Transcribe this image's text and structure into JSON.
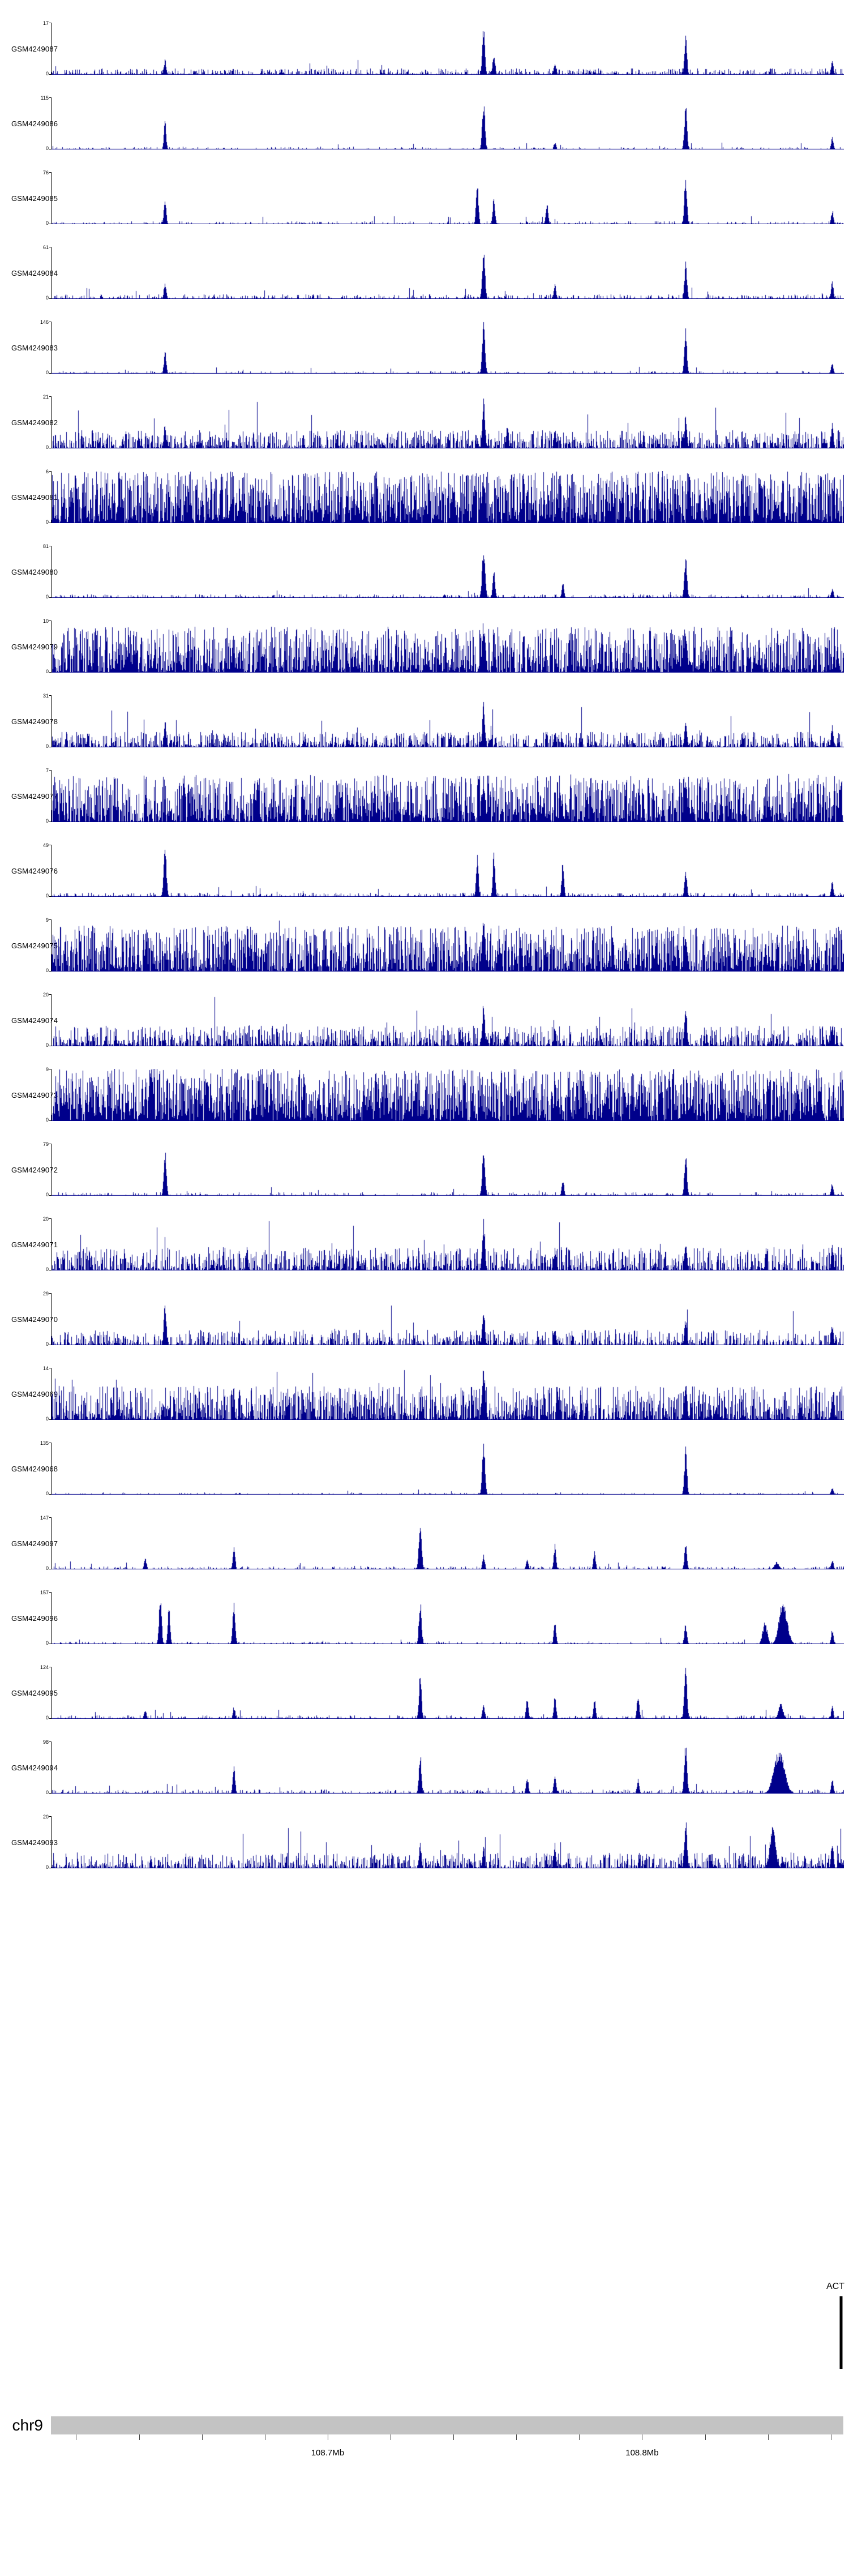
{
  "chart_data": {
    "type": "area",
    "subtype": "genome-coverage-tracks",
    "colors": {
      "signal": "#00008b",
      "chromosome_bar": "#c3c3c3",
      "gene": "#000000",
      "axis": "#000000"
    },
    "x_axis": {
      "chromosome_label": "chr9",
      "start_mb": 108.612,
      "end_mb": 108.864,
      "tick_interval_mb": 0.02,
      "labels": [
        {
          "text": "108.7Mb",
          "mb": 108.7
        },
        {
          "text": "108.8Mb",
          "mb": 108.8
        }
      ]
    },
    "gene": {
      "label": "ACT",
      "frac": 0.997
    },
    "tracks": [
      {
        "name": "GSM4249087",
        "ymax": "17",
        "ymin": "0",
        "seed": 11,
        "noise": {
          "d": 0.75,
          "a": 0.12,
          "p": 2.6
        },
        "peaks": [
          [
            0.143,
            0.32,
            2
          ],
          [
            0.545,
            1,
            2.2
          ],
          [
            0.558,
            0.45,
            2
          ],
          [
            0.635,
            0.22,
            2
          ],
          [
            0.8,
            0.78,
            2.2
          ],
          [
            0.985,
            0.3,
            2
          ]
        ]
      },
      {
        "name": "GSM4249086",
        "ymax": "115",
        "ymin": "0",
        "seed": 12,
        "noise": {
          "d": 0.45,
          "a": 0.05,
          "p": 3
        },
        "peaks": [
          [
            0.143,
            0.55,
            2
          ],
          [
            0.545,
            1,
            2.4
          ],
          [
            0.635,
            0.15,
            2
          ],
          [
            0.8,
            0.92,
            2.2
          ],
          [
            0.985,
            0.25,
            2
          ]
        ]
      },
      {
        "name": "GSM4249085",
        "ymax": "76",
        "ymin": "0",
        "seed": 13,
        "noise": {
          "d": 0.5,
          "a": 0.06,
          "p": 3
        },
        "peaks": [
          [
            0.143,
            0.5,
            2
          ],
          [
            0.537,
            0.88,
            2
          ],
          [
            0.558,
            0.55,
            2
          ],
          [
            0.625,
            0.42,
            2
          ],
          [
            0.8,
            1,
            2.2
          ],
          [
            0.985,
            0.28,
            2
          ]
        ]
      },
      {
        "name": "GSM4249084",
        "ymax": "61",
        "ymin": "0",
        "seed": 14,
        "noise": {
          "d": 0.6,
          "a": 0.09,
          "p": 2.8
        },
        "peaks": [
          [
            0.143,
            0.35,
            2
          ],
          [
            0.545,
            1,
            2.4
          ],
          [
            0.635,
            0.3,
            2
          ],
          [
            0.8,
            0.72,
            2.2
          ],
          [
            0.985,
            0.35,
            2
          ]
        ]
      },
      {
        "name": "GSM4249083",
        "ymax": "146",
        "ymin": "0",
        "seed": 15,
        "noise": {
          "d": 0.4,
          "a": 0.05,
          "p": 3
        },
        "peaks": [
          [
            0.143,
            0.45,
            2
          ],
          [
            0.545,
            1,
            2.4
          ],
          [
            0.8,
            0.88,
            2.2
          ],
          [
            0.985,
            0.22,
            2
          ]
        ]
      },
      {
        "name": "GSM4249082",
        "ymax": "21",
        "ymin": "0",
        "seed": 16,
        "noise": {
          "d": 0.85,
          "a": 0.35,
          "p": 2
        },
        "peaks": [
          [
            0.143,
            0.5,
            2
          ],
          [
            0.545,
            1,
            2.4
          ],
          [
            0.575,
            0.5,
            2
          ],
          [
            0.635,
            0.42,
            2
          ],
          [
            0.8,
            0.68,
            2.2
          ],
          [
            0.985,
            0.5,
            2
          ]
        ]
      },
      {
        "name": "GSM4249081",
        "ymax": "6",
        "ymin": "0",
        "seed": 17,
        "noise": {
          "d": 0.97,
          "a": 1,
          "p": 1.15
        },
        "peaks": [
          [
            0.545,
            1,
            3
          ]
        ]
      },
      {
        "name": "GSM4249080",
        "ymax": "81",
        "ymin": "0",
        "seed": 18,
        "noise": {
          "d": 0.55,
          "a": 0.07,
          "p": 3
        },
        "peaks": [
          [
            0.545,
            1,
            2.6
          ],
          [
            0.558,
            0.6,
            2
          ],
          [
            0.645,
            0.3,
            2
          ],
          [
            0.8,
            0.85,
            2.2
          ],
          [
            0.985,
            0.2,
            2
          ]
        ]
      },
      {
        "name": "GSM4249079",
        "ymax": "10",
        "ymin": "0",
        "seed": 19,
        "noise": {
          "d": 0.95,
          "a": 0.88,
          "p": 1.5
        },
        "peaks": [
          [
            0.545,
            1,
            3
          ],
          [
            0.8,
            0.8,
            3
          ]
        ]
      },
      {
        "name": "GSM4249078",
        "ymax": "31",
        "ymin": "0",
        "seed": 20,
        "noise": {
          "d": 0.88,
          "a": 0.3,
          "p": 2.2
        },
        "peaks": [
          [
            0.143,
            0.55,
            2
          ],
          [
            0.545,
            0.9,
            2.2
          ],
          [
            0.635,
            0.35,
            2
          ],
          [
            0.8,
            0.55,
            2.2
          ],
          [
            0.985,
            0.45,
            2
          ]
        ]
      },
      {
        "name": "GSM4249077",
        "ymax": "7",
        "ymin": "0",
        "seed": 21,
        "noise": {
          "d": 0.95,
          "a": 0.9,
          "p": 1.4
        },
        "peaks": [
          [
            0.26,
            1,
            2.2
          ],
          [
            0.545,
            0.9,
            3
          ],
          [
            0.8,
            0.85,
            3
          ]
        ]
      },
      {
        "name": "GSM4249076",
        "ymax": "49",
        "ymin": "0",
        "seed": 22,
        "noise": {
          "d": 0.6,
          "a": 0.08,
          "p": 3
        },
        "peaks": [
          [
            0.143,
            1,
            2.4
          ],
          [
            0.537,
            0.85,
            2
          ],
          [
            0.558,
            0.9,
            2
          ],
          [
            0.645,
            0.72,
            2
          ],
          [
            0.8,
            0.5,
            2.2
          ],
          [
            0.985,
            0.3,
            2
          ]
        ]
      },
      {
        "name": "GSM4249075",
        "ymax": "9",
        "ymin": "0",
        "seed": 23,
        "noise": {
          "d": 0.95,
          "a": 0.88,
          "p": 1.5
        },
        "peaks": [
          [
            0.545,
            1,
            3
          ],
          [
            0.8,
            0.8,
            3
          ]
        ]
      },
      {
        "name": "GSM4249074",
        "ymax": "20",
        "ymin": "0",
        "seed": 24,
        "noise": {
          "d": 0.87,
          "a": 0.4,
          "p": 2.2
        },
        "peaks": [
          [
            0.545,
            0.9,
            2.2
          ],
          [
            0.635,
            0.4,
            2
          ],
          [
            0.8,
            0.85,
            2.2
          ],
          [
            0.985,
            0.5,
            2
          ]
        ]
      },
      {
        "name": "GSM4249073",
        "ymax": "9",
        "ymin": "0",
        "seed": 25,
        "noise": {
          "d": 0.97,
          "a": 1,
          "p": 1.1
        },
        "peaks": []
      },
      {
        "name": "GSM4249072",
        "ymax": "79",
        "ymin": "0",
        "seed": 26,
        "noise": {
          "d": 0.5,
          "a": 0.07,
          "p": 3
        },
        "peaks": [
          [
            0.143,
            0.9,
            2.2
          ],
          [
            0.545,
            1,
            2.4
          ],
          [
            0.645,
            0.35,
            2
          ],
          [
            0.8,
            0.9,
            2.2
          ],
          [
            0.985,
            0.25,
            2
          ]
        ]
      },
      {
        "name": "GSM4249071",
        "ymax": "20",
        "ymin": "0",
        "seed": 27,
        "noise": {
          "d": 0.86,
          "a": 0.45,
          "p": 2
        },
        "peaks": [
          [
            0.545,
            1,
            2.4
          ],
          [
            0.635,
            0.4,
            2
          ],
          [
            0.8,
            0.62,
            2.2
          ],
          [
            0.985,
            0.5,
            2
          ]
        ]
      },
      {
        "name": "GSM4249070",
        "ymax": "29",
        "ymin": "0",
        "seed": 28,
        "noise": {
          "d": 0.78,
          "a": 0.3,
          "p": 2.4
        },
        "peaks": [
          [
            0.143,
            0.85,
            2.2
          ],
          [
            0.545,
            0.8,
            2.2
          ],
          [
            0.635,
            0.35,
            2
          ],
          [
            0.8,
            0.55,
            2.2
          ],
          [
            0.985,
            0.42,
            2
          ]
        ]
      },
      {
        "name": "GSM4249069",
        "ymax": "14",
        "ymin": "0",
        "seed": 29,
        "noise": {
          "d": 0.9,
          "a": 0.65,
          "p": 1.7
        },
        "peaks": [
          [
            0.545,
            1,
            3
          ],
          [
            0.8,
            0.7,
            2.6
          ],
          [
            0.985,
            0.5,
            2
          ]
        ]
      },
      {
        "name": "GSM4249068",
        "ymax": "135",
        "ymin": "0",
        "seed": 30,
        "noise": {
          "d": 0.35,
          "a": 0.04,
          "p": 3
        },
        "peaks": [
          [
            0.545,
            1,
            2.4
          ],
          [
            0.8,
            0.95,
            2.2
          ],
          [
            0.985,
            0.15,
            2
          ]
        ]
      },
      {
        "name": "GSM4249097",
        "ymax": "147",
        "ymin": "0",
        "seed": 31,
        "noise": {
          "d": 0.55,
          "a": 0.06,
          "p": 3
        },
        "peaks": [
          [
            0.118,
            0.25,
            2
          ],
          [
            0.23,
            0.5,
            2
          ],
          [
            0.465,
            1,
            2.4
          ],
          [
            0.545,
            0.3,
            2
          ],
          [
            0.6,
            0.22,
            2
          ],
          [
            0.635,
            0.5,
            2
          ],
          [
            0.685,
            0.35,
            2
          ],
          [
            0.8,
            0.5,
            2.2
          ],
          [
            0.915,
            0.15,
            4
          ],
          [
            0.985,
            0.2,
            2
          ]
        ]
      },
      {
        "name": "GSM4249096",
        "ymax": "157",
        "ymin": "0",
        "seed": 32,
        "noise": {
          "d": 0.5,
          "a": 0.05,
          "p": 3
        },
        "peaks": [
          [
            0.137,
            1,
            2.2
          ],
          [
            0.148,
            0.75,
            2
          ],
          [
            0.23,
            0.85,
            2.2
          ],
          [
            0.465,
            0.9,
            2.2
          ],
          [
            0.635,
            0.5,
            2
          ],
          [
            0.8,
            0.4,
            2.2
          ],
          [
            0.9,
            0.45,
            4
          ],
          [
            0.923,
            0.85,
            7
          ],
          [
            0.985,
            0.3,
            2
          ]
        ]
      },
      {
        "name": "GSM4249095",
        "ymax": "124",
        "ymin": "0",
        "seed": 33,
        "noise": {
          "d": 0.62,
          "a": 0.07,
          "p": 3
        },
        "peaks": [
          [
            0.118,
            0.2,
            2
          ],
          [
            0.23,
            0.25,
            2
          ],
          [
            0.465,
            0.9,
            2.2
          ],
          [
            0.545,
            0.3,
            2
          ],
          [
            0.6,
            0.45,
            2
          ],
          [
            0.635,
            0.5,
            2
          ],
          [
            0.685,
            0.4,
            2
          ],
          [
            0.74,
            0.55,
            2
          ],
          [
            0.8,
            1,
            2.4
          ],
          [
            0.92,
            0.3,
            4
          ],
          [
            0.985,
            0.25,
            2
          ]
        ]
      },
      {
        "name": "GSM4249094",
        "ymax": "98",
        "ymin": "0",
        "seed": 34,
        "noise": {
          "d": 0.62,
          "a": 0.08,
          "p": 3
        },
        "peaks": [
          [
            0.23,
            0.55,
            2
          ],
          [
            0.465,
            0.8,
            2.2
          ],
          [
            0.6,
            0.35,
            2
          ],
          [
            0.635,
            0.42,
            2
          ],
          [
            0.74,
            0.3,
            2
          ],
          [
            0.8,
            1,
            2.4
          ],
          [
            0.918,
            0.9,
            9
          ],
          [
            0.985,
            0.3,
            2
          ]
        ]
      },
      {
        "name": "GSM4249093",
        "ymax": "20",
        "ymin": "0",
        "seed": 35,
        "noise": {
          "d": 0.86,
          "a": 0.3,
          "p": 2.3
        },
        "peaks": [
          [
            0.465,
            0.5,
            2
          ],
          [
            0.545,
            0.45,
            2
          ],
          [
            0.635,
            0.5,
            2
          ],
          [
            0.8,
            1,
            2.4
          ],
          [
            0.91,
            0.85,
            5
          ],
          [
            0.985,
            0.6,
            2
          ]
        ]
      }
    ]
  }
}
